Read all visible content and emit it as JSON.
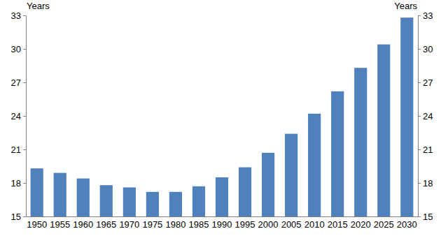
{
  "chart_data": {
    "type": "bar",
    "y_label": "Years",
    "y2_label": "Years",
    "categories": [
      "1950",
      "1955",
      "1960",
      "1965",
      "1970",
      "1975",
      "1980",
      "1985",
      "1990",
      "1995",
      "2000",
      "2005",
      "2010",
      "2015",
      "2020",
      "2025",
      "2030"
    ],
    "values": [
      19.3,
      18.9,
      18.4,
      17.8,
      17.6,
      17.2,
      17.2,
      17.7,
      18.5,
      19.4,
      20.7,
      22.4,
      24.2,
      26.2,
      28.3,
      30.4,
      32.8
    ],
    "color": "#4f81bd",
    "ylim": [
      15,
      33
    ],
    "yticks": [
      15,
      18,
      21,
      24,
      27,
      30,
      33
    ],
    "y2lim": [
      15,
      33
    ],
    "y2ticks": [
      15,
      18,
      21,
      24,
      27,
      30,
      33
    ],
    "grid": false
  }
}
